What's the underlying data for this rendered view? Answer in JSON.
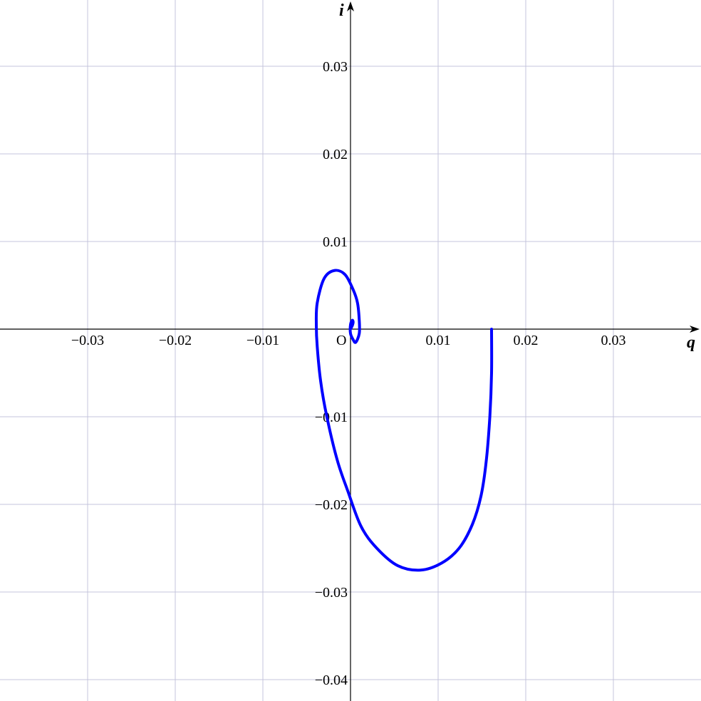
{
  "chart_data": {
    "type": "line",
    "title": "",
    "xlabel": "q",
    "ylabel": "i",
    "origin_label": "O",
    "xlim": [
      -0.04,
      0.04
    ],
    "ylim": [
      -0.042,
      0.038
    ],
    "grid": true,
    "x_ticks": [
      {
        "value": -0.03,
        "label": "−0.03"
      },
      {
        "value": -0.02,
        "label": "−0.02"
      },
      {
        "value": -0.01,
        "label": "−0.01"
      },
      {
        "value": 0.01,
        "label": "0.01"
      },
      {
        "value": 0.02,
        "label": "0.02"
      },
      {
        "value": 0.03,
        "label": "0.03"
      }
    ],
    "y_ticks": [
      {
        "value": 0.03,
        "label": "0.03"
      },
      {
        "value": 0.02,
        "label": "0.02"
      },
      {
        "value": 0.01,
        "label": "0.01"
      },
      {
        "value": -0.01,
        "label": "−0.01"
      },
      {
        "value": -0.02,
        "label": "−0.02"
      },
      {
        "value": -0.03,
        "label": "−0.03"
      },
      {
        "value": -0.04,
        "label": "−0.04"
      }
    ],
    "series": [
      {
        "color": "#0000ff",
        "x": [
          0.0161,
          0.0161,
          0.0159,
          0.0155,
          0.0149,
          0.0139,
          0.0124,
          0.0104,
          0.008,
          0.0054,
          0.003,
          0.0012,
          -0.0003,
          -0.0015,
          -0.0027,
          -0.0034,
          -0.0038,
          -0.0039,
          -0.0038,
          -0.003,
          -0.0018,
          -0.0006,
          0.0003,
          0.0008,
          0.001,
          0.001,
          0.0006,
          0.0003,
          0.0,
          0.0,
          0.0002,
          0.0003,
          0.0002,
          0.0
        ],
        "y": [
          0.0,
          -0.005,
          -0.01,
          -0.015,
          -0.019,
          -0.0223,
          -0.025,
          -0.0267,
          -0.0275,
          -0.027,
          -0.025,
          -0.0225,
          -0.0185,
          -0.015,
          -0.01,
          -0.006,
          -0.002,
          0.0005,
          0.003,
          0.0058,
          0.0067,
          0.0062,
          0.0045,
          0.003,
          0.001,
          -0.0005,
          -0.0015,
          -0.0012,
          -0.0005,
          0.0005,
          0.001,
          0.0008,
          0.0004,
          0.0
        ]
      }
    ]
  }
}
